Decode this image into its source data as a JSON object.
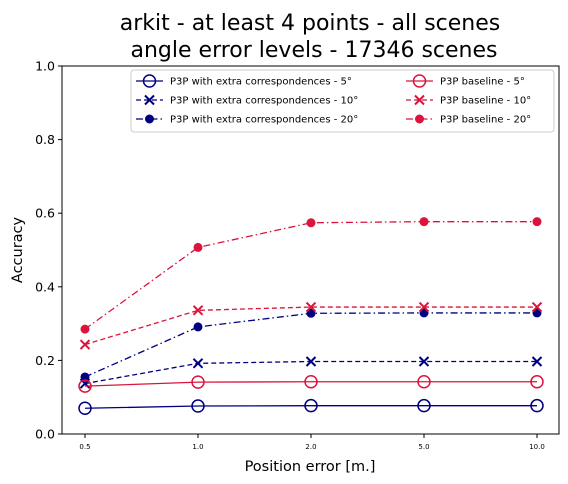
{
  "chart_data": {
    "type": "line",
    "title_lines": [
      "arkit - at least 4 points - all scenes",
      "angle error levels - 17346 scenes"
    ],
    "xlabel": "Position error [m.]",
    "ylabel": "Accuracy",
    "categories": [
      "0.5",
      "1.0",
      "2.0",
      "5.0",
      "10.0"
    ],
    "ylim": [
      0,
      1.0
    ],
    "yticks": [
      "0.0",
      "0.2",
      "0.4",
      "0.6",
      "0.8",
      "1.0"
    ],
    "grid": false,
    "legend_position": "top-right",
    "legend_columns": 2,
    "series": [
      {
        "name": "P3P with extra correspondences - 5°",
        "color": "#000080",
        "marker": "open-circle",
        "linestyle": "solid",
        "values": [
          0.07,
          0.076,
          0.077,
          0.077,
          0.077
        ]
      },
      {
        "name": "P3P with extra correspondences - 10°",
        "color": "#000080",
        "marker": "x",
        "linestyle": "dashed",
        "values": [
          0.137,
          0.192,
          0.197,
          0.197,
          0.197
        ]
      },
      {
        "name": "P3P with extra correspondences - 20°",
        "color": "#000080",
        "marker": "filled-circle",
        "linestyle": "dashdot",
        "values": [
          0.155,
          0.291,
          0.328,
          0.329,
          0.329
        ]
      },
      {
        "name": "P3P baseline - 5°",
        "color": "#dc143c",
        "marker": "open-circle",
        "linestyle": "solid",
        "values": [
          0.13,
          0.141,
          0.142,
          0.142,
          0.142
        ]
      },
      {
        "name": "P3P baseline - 10°",
        "color": "#dc143c",
        "marker": "x",
        "linestyle": "dashed",
        "values": [
          0.243,
          0.336,
          0.345,
          0.345,
          0.345
        ]
      },
      {
        "name": "P3P baseline - 20°",
        "color": "#dc143c",
        "marker": "filled-circle",
        "linestyle": "dashdot",
        "values": [
          0.285,
          0.507,
          0.574,
          0.577,
          0.577
        ]
      }
    ]
  }
}
